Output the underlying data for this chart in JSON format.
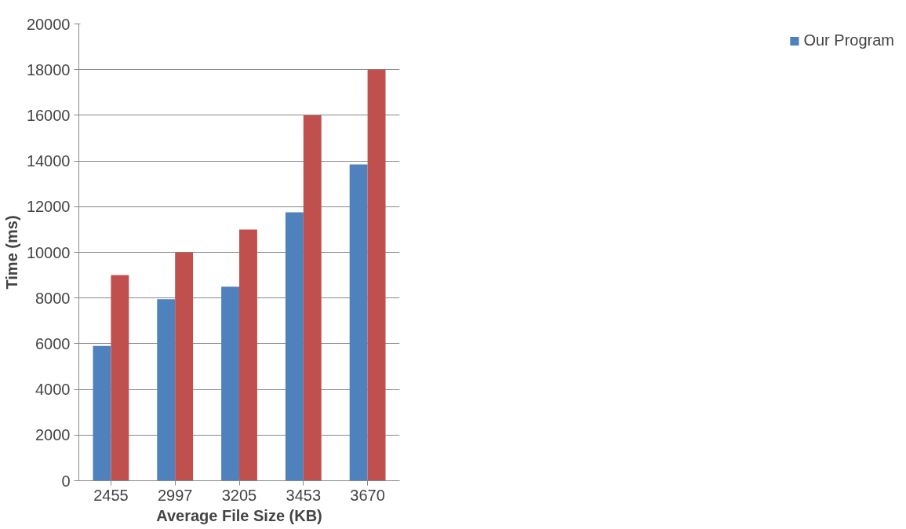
{
  "chart_data": {
    "type": "bar",
    "xlabel": "Average File Size (KB)",
    "ylabel": "Time (ms)",
    "categories": [
      "2455",
      "2997",
      "3205",
      "3453",
      "3670"
    ],
    "series": [
      {
        "name": "Our Program",
        "color": "#4f81bd",
        "values": [
          5900,
          7950,
          8500,
          11750,
          13850
        ]
      },
      {
        "color": "#c0504d",
        "values": [
          9000,
          10000,
          11000,
          16000,
          18000
        ]
      }
    ],
    "ylim": [
      0,
      20000
    ],
    "yticks": [
      0,
      2000,
      4000,
      6000,
      8000,
      10000,
      12000,
      14000,
      16000,
      18000,
      20000
    ],
    "grid": "y",
    "legend": "right"
  }
}
